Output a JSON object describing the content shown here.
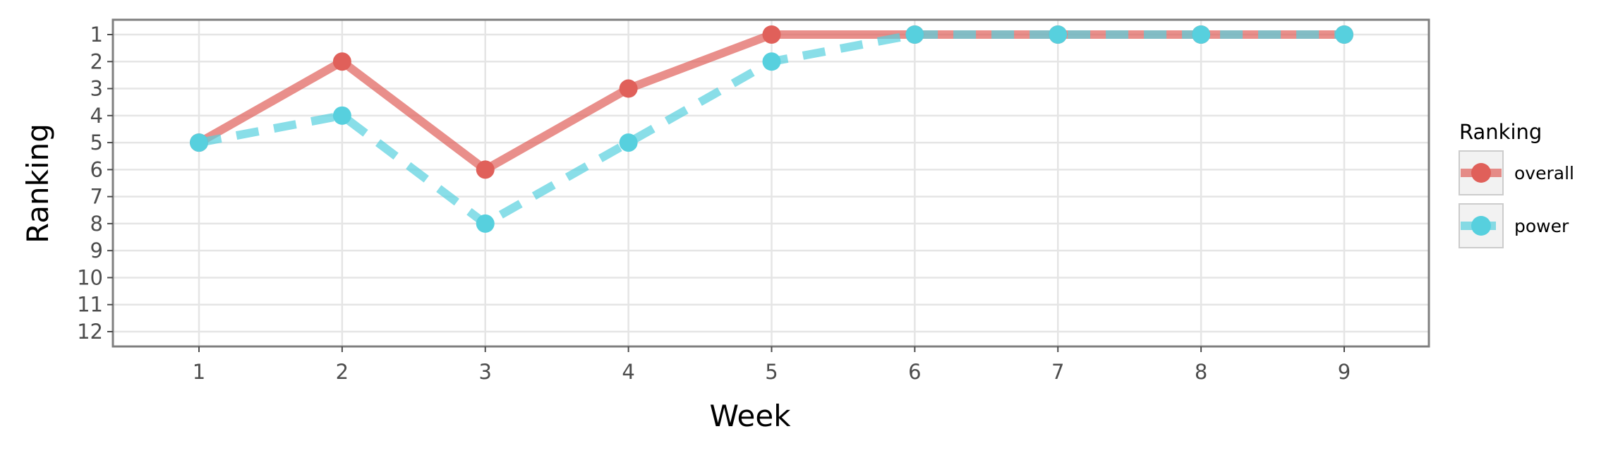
{
  "chart_data": {
    "type": "line",
    "xlabel": "Week",
    "ylabel": "Ranking",
    "x": [
      1,
      2,
      3,
      4,
      5,
      6,
      7,
      8,
      9
    ],
    "xlim": [
      1,
      9
    ],
    "y_ticks": [
      1,
      2,
      3,
      4,
      5,
      6,
      7,
      8,
      9,
      10,
      11,
      12
    ],
    "ylim": [
      1,
      12
    ],
    "y_reversed": true,
    "grid": true,
    "legend": {
      "title": "Ranking",
      "placement": "right"
    },
    "series": [
      {
        "name": "overall",
        "values": [
          5,
          2,
          6,
          3,
          1,
          1,
          1,
          1,
          1
        ],
        "color": "#e0605a",
        "line_style": "solid"
      },
      {
        "name": "power",
        "values": [
          5,
          4,
          8,
          5,
          2,
          1,
          1,
          1,
          1
        ],
        "color": "#57d0de",
        "line_style": "dashed"
      }
    ]
  }
}
